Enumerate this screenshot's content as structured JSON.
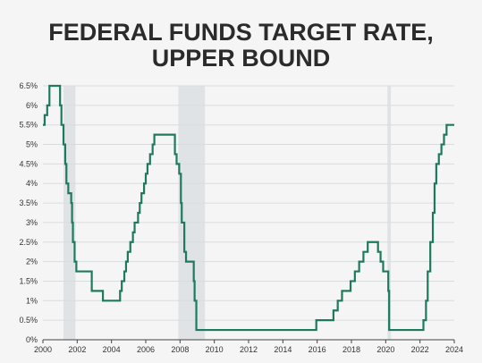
{
  "title": {
    "line1": "FEDERAL FUNDS TARGET RATE,",
    "line2": "UPPER BOUND"
  },
  "colors": {
    "background": "#f5f5f5",
    "line": "#1e7a5f",
    "recession": "#e0e3e6",
    "grid": "#d9dcdf",
    "text": "#2b2b2b"
  },
  "chart_data": {
    "type": "line",
    "step": true,
    "title": "FEDERAL FUNDS TARGET RATE, UPPER BOUND",
    "xlabel": "",
    "ylabel": "",
    "xlim": [
      2000,
      2024
    ],
    "ylim": [
      0,
      6.5
    ],
    "grid": true,
    "x_ticks": [
      2000,
      2002,
      2004,
      2006,
      2008,
      2010,
      2012,
      2014,
      2016,
      2018,
      2020,
      2022,
      2024
    ],
    "x_tick_labels": [
      "2000",
      "2002",
      "2004",
      "2006",
      "2008",
      "2010",
      "2012",
      "2014",
      "2016",
      "2018",
      "2020",
      "2022",
      "2024"
    ],
    "y_ticks": [
      0,
      0.5,
      1,
      1.5,
      2,
      2.5,
      3,
      3.5,
      4,
      4.5,
      5,
      5.5,
      6,
      6.5
    ],
    "y_tick_labels": [
      "0%",
      "0.5%",
      "1%",
      "1.5%",
      "2%",
      "2.5%",
      "3%",
      "3.5%",
      "4%",
      "4.5%",
      "5%",
      "5.5%",
      "6%",
      "6.5%"
    ],
    "recessions": [
      {
        "start": 2001.2,
        "end": 2001.9
      },
      {
        "start": 2007.9,
        "end": 2009.45
      },
      {
        "start": 2020.1,
        "end": 2020.3
      }
    ],
    "series": [
      {
        "points": [
          [
            2000.0,
            5.5
          ],
          [
            2000.1,
            5.75
          ],
          [
            2000.25,
            6.0
          ],
          [
            2000.38,
            6.5
          ],
          [
            2001.0,
            6.0
          ],
          [
            2001.08,
            5.5
          ],
          [
            2001.2,
            5.0
          ],
          [
            2001.3,
            4.5
          ],
          [
            2001.37,
            4.0
          ],
          [
            2001.48,
            3.75
          ],
          [
            2001.65,
            3.5
          ],
          [
            2001.7,
            3.0
          ],
          [
            2001.75,
            2.5
          ],
          [
            2001.85,
            2.0
          ],
          [
            2001.95,
            1.75
          ],
          [
            2002.85,
            1.25
          ],
          [
            2003.5,
            1.0
          ],
          [
            2004.5,
            1.25
          ],
          [
            2004.6,
            1.5
          ],
          [
            2004.75,
            1.75
          ],
          [
            2004.85,
            2.0
          ],
          [
            2004.95,
            2.25
          ],
          [
            2005.1,
            2.5
          ],
          [
            2005.25,
            2.75
          ],
          [
            2005.35,
            3.0
          ],
          [
            2005.55,
            3.25
          ],
          [
            2005.65,
            3.5
          ],
          [
            2005.75,
            3.75
          ],
          [
            2005.9,
            4.0
          ],
          [
            2006.0,
            4.25
          ],
          [
            2006.1,
            4.5
          ],
          [
            2006.25,
            4.75
          ],
          [
            2006.4,
            5.0
          ],
          [
            2006.5,
            5.25
          ],
          [
            2007.7,
            4.75
          ],
          [
            2007.8,
            4.5
          ],
          [
            2007.95,
            4.25
          ],
          [
            2008.05,
            3.5
          ],
          [
            2008.1,
            3.0
          ],
          [
            2008.25,
            2.25
          ],
          [
            2008.35,
            2.0
          ],
          [
            2008.8,
            1.5
          ],
          [
            2008.85,
            1.0
          ],
          [
            2008.95,
            0.25
          ],
          [
            2015.95,
            0.5
          ],
          [
            2016.95,
            0.75
          ],
          [
            2017.2,
            1.0
          ],
          [
            2017.45,
            1.25
          ],
          [
            2017.95,
            1.5
          ],
          [
            2018.2,
            1.75
          ],
          [
            2018.45,
            2.0
          ],
          [
            2018.7,
            2.25
          ],
          [
            2018.95,
            2.5
          ],
          [
            2019.55,
            2.25
          ],
          [
            2019.7,
            2.0
          ],
          [
            2019.85,
            1.75
          ],
          [
            2020.15,
            1.25
          ],
          [
            2020.2,
            0.25
          ],
          [
            2022.2,
            0.5
          ],
          [
            2022.35,
            1.0
          ],
          [
            2022.45,
            1.75
          ],
          [
            2022.6,
            2.5
          ],
          [
            2022.75,
            3.25
          ],
          [
            2022.85,
            4.0
          ],
          [
            2022.95,
            4.5
          ],
          [
            2023.1,
            4.75
          ],
          [
            2023.25,
            5.0
          ],
          [
            2023.4,
            5.25
          ],
          [
            2023.55,
            5.5
          ],
          [
            2024.0,
            5.5
          ]
        ]
      }
    ]
  }
}
